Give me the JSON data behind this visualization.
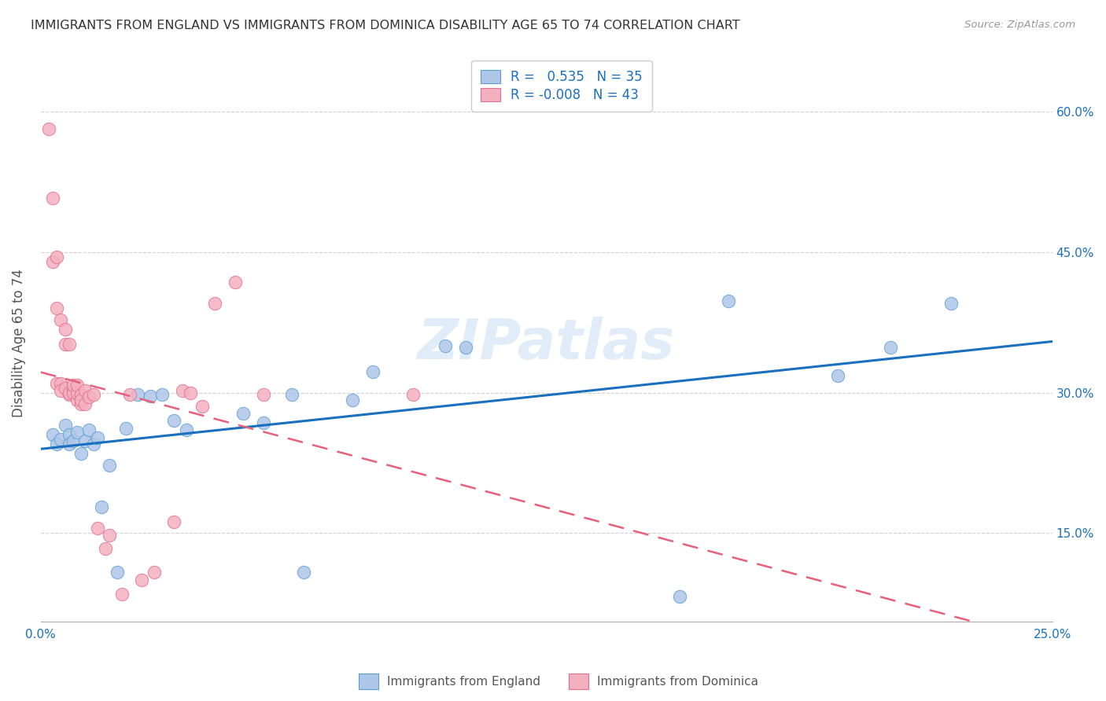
{
  "title": "IMMIGRANTS FROM ENGLAND VS IMMIGRANTS FROM DOMINICA DISABILITY AGE 65 TO 74 CORRELATION CHART",
  "source": "Source: ZipAtlas.com",
  "ylabel": "Disability Age 65 to 74",
  "xlim": [
    0.0,
    0.25
  ],
  "ylim": [
    0.055,
    0.65
  ],
  "ytick_positions": [
    0.15,
    0.3,
    0.45,
    0.6
  ],
  "ytick_labels": [
    "15.0%",
    "30.0%",
    "45.0%",
    "60.0%"
  ],
  "xtick_positions": [
    0.0,
    0.05,
    0.1,
    0.15,
    0.2,
    0.25
  ],
  "xtick_labels": [
    "0.0%",
    "",
    "",
    "",
    "",
    "25.0%"
  ],
  "r_england": 0.535,
  "n_england": 35,
  "r_dominica": -0.008,
  "n_dominica": 43,
  "england_fill": "#aec6e8",
  "england_edge": "#5a9fd4",
  "dominica_fill": "#f4b0c0",
  "dominica_edge": "#e07090",
  "england_line_color": "#1a6fbe",
  "dominica_line_color": "#e8607a",
  "watermark": "ZIPatlas",
  "england_x": [
    0.003,
    0.004,
    0.005,
    0.006,
    0.007,
    0.007,
    0.008,
    0.009,
    0.01,
    0.011,
    0.012,
    0.013,
    0.014,
    0.015,
    0.017,
    0.019,
    0.021,
    0.024,
    0.027,
    0.03,
    0.033,
    0.036,
    0.05,
    0.055,
    0.062,
    0.065,
    0.077,
    0.082,
    0.1,
    0.105,
    0.158,
    0.17,
    0.197,
    0.21,
    0.225
  ],
  "england_y": [
    0.255,
    0.245,
    0.25,
    0.265,
    0.255,
    0.245,
    0.248,
    0.258,
    0.235,
    0.248,
    0.26,
    0.245,
    0.252,
    0.178,
    0.222,
    0.108,
    0.262,
    0.298,
    0.296,
    0.298,
    0.27,
    0.26,
    0.278,
    0.268,
    0.298,
    0.108,
    0.292,
    0.322,
    0.35,
    0.348,
    0.082,
    0.398,
    0.318,
    0.348,
    0.395
  ],
  "dominica_x": [
    0.002,
    0.003,
    0.003,
    0.004,
    0.004,
    0.004,
    0.005,
    0.005,
    0.005,
    0.006,
    0.006,
    0.006,
    0.007,
    0.007,
    0.007,
    0.008,
    0.008,
    0.008,
    0.009,
    0.009,
    0.009,
    0.01,
    0.01,
    0.01,
    0.011,
    0.011,
    0.012,
    0.013,
    0.014,
    0.016,
    0.017,
    0.02,
    0.022,
    0.025,
    0.028,
    0.033,
    0.035,
    0.037,
    0.04,
    0.043,
    0.048,
    0.055,
    0.092
  ],
  "dominica_y": [
    0.582,
    0.508,
    0.44,
    0.445,
    0.39,
    0.31,
    0.31,
    0.302,
    0.378,
    0.305,
    0.352,
    0.368,
    0.298,
    0.352,
    0.3,
    0.302,
    0.3,
    0.308,
    0.292,
    0.3,
    0.308,
    0.288,
    0.298,
    0.292,
    0.288,
    0.302,
    0.295,
    0.298,
    0.155,
    0.133,
    0.148,
    0.085,
    0.298,
    0.1,
    0.108,
    0.162,
    0.302,
    0.3,
    0.285,
    0.395,
    0.418,
    0.298,
    0.298
  ]
}
